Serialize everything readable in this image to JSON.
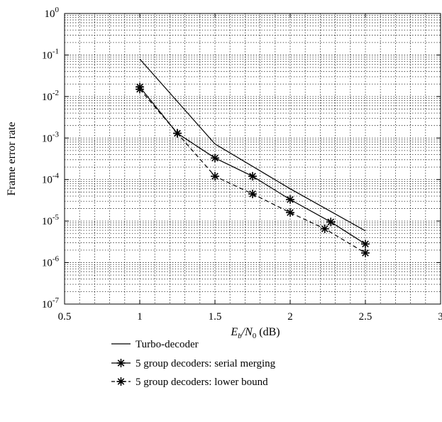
{
  "chart_data": {
    "type": "line",
    "xlabel_main": "E",
    "xlabel_sub1": "b",
    "xlabel_mid": "/N",
    "xlabel_sub2": "0",
    "xlabel_unit": " (dB)",
    "ylabel": "Frame error rate",
    "xlim": [
      0.5,
      3
    ],
    "ylim": [
      1e-07,
      1
    ],
    "yscale": "log",
    "grid": true,
    "xticks": [
      0.5,
      1,
      1.5,
      2,
      2.5,
      3
    ],
    "xtick_labels": [
      "0.5",
      "1",
      "1.5",
      "2",
      "2.5",
      "3"
    ],
    "yticks": [
      1e-07,
      1e-06,
      1e-05,
      0.0001,
      0.001,
      0.01,
      0.1,
      1
    ],
    "ytick_exponents": [
      "-7",
      "-6",
      "-5",
      "-4",
      "-3",
      "-2",
      "-1",
      "0"
    ],
    "ytick_base": "10",
    "legend_position": "below plot",
    "series": [
      {
        "name": "Turbo-decoder",
        "line": "solid",
        "marker": "none",
        "x": [
          1.0,
          1.5,
          2.0,
          2.5
        ],
        "y": [
          0.08,
          0.00072,
          6e-05,
          5.8e-06
        ]
      },
      {
        "name": "5 group decoders: serial merging",
        "line": "solid",
        "marker": "asterisk",
        "x": [
          1.0,
          1.25,
          1.5,
          1.75,
          2.0,
          2.27,
          2.5
        ],
        "y": [
          0.017,
          0.0013,
          0.00033,
          0.00012,
          3.3e-05,
          9.5e-06,
          2.8e-06
        ]
      },
      {
        "name": "5 group decoders: lower bound",
        "line": "dashed",
        "marker": "asterisk",
        "x": [
          1.0,
          1.25,
          1.5,
          1.75,
          2.0,
          2.23,
          2.5
        ],
        "y": [
          0.015,
          0.0013,
          0.00012,
          4.5e-05,
          1.6e-05,
          6.5e-06,
          1.7e-06
        ]
      }
    ]
  }
}
